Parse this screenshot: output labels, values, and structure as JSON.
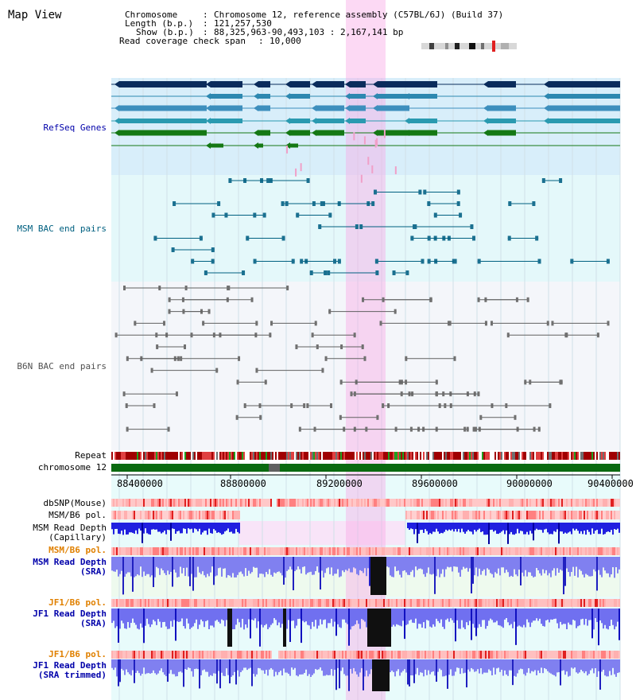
{
  "view_title": "Map View",
  "info": {
    "chromosome_label": "Chromosome",
    "chromosome_value": "Chromosome 12, reference assembly (C57BL/6J) (Build 37)",
    "length_label": "Length (b.p.)",
    "length_value": "121,257,530",
    "show_label": "Show (b.p.)",
    "show_value": "88,325,963-90,493,103 : 2,167,141 bp",
    "coverage_label": "Read coverage check span",
    "coverage_value": "10,000"
  },
  "tracks": {
    "refseq": {
      "label": "RefSeq Genes",
      "color": "#0000aa"
    },
    "msm_bac": {
      "label": "MSM BAC end pairs",
      "color": "#006080"
    },
    "b6n_bac": {
      "label": "B6N BAC end pairs",
      "color": "#505050"
    },
    "repeat": {
      "label": "Repeat"
    },
    "chromosome": {
      "label": "chromosome 12"
    },
    "dbsnp": {
      "label": "dbSNP(Mouse)"
    },
    "msm_b6_pol": {
      "label": "MSM/B6 pol."
    },
    "msm_depth_cap": {
      "label1": "MSM Read Depth",
      "label2": "(Capillary)"
    },
    "msm_b6_pol2": {
      "label": "MSM/B6 pol.",
      "color": "#e08000"
    },
    "msm_depth_sra": {
      "label1": "MSM Read Depth",
      "label2": "(SRA)",
      "color": "#0000aa"
    },
    "jf1_b6_pol": {
      "label": "JF1/B6 pol.",
      "color": "#e08000"
    },
    "jf1_depth_sra": {
      "label1": "JF1 Read Depth",
      "label2": "(SRA)",
      "color": "#0000aa"
    },
    "jf1_b6_pol2": {
      "label": "JF1/B6 pol.",
      "color": "#e08000"
    },
    "jf1_depth_trim": {
      "label1": "JF1 Read Depth",
      "label2": "(SRA trimmed)",
      "color": "#0000aa"
    }
  },
  "axis": {
    "ticks": [
      "88400000",
      "88800000",
      "89200000",
      "89600000",
      "90000000",
      "90400000"
    ]
  }
}
